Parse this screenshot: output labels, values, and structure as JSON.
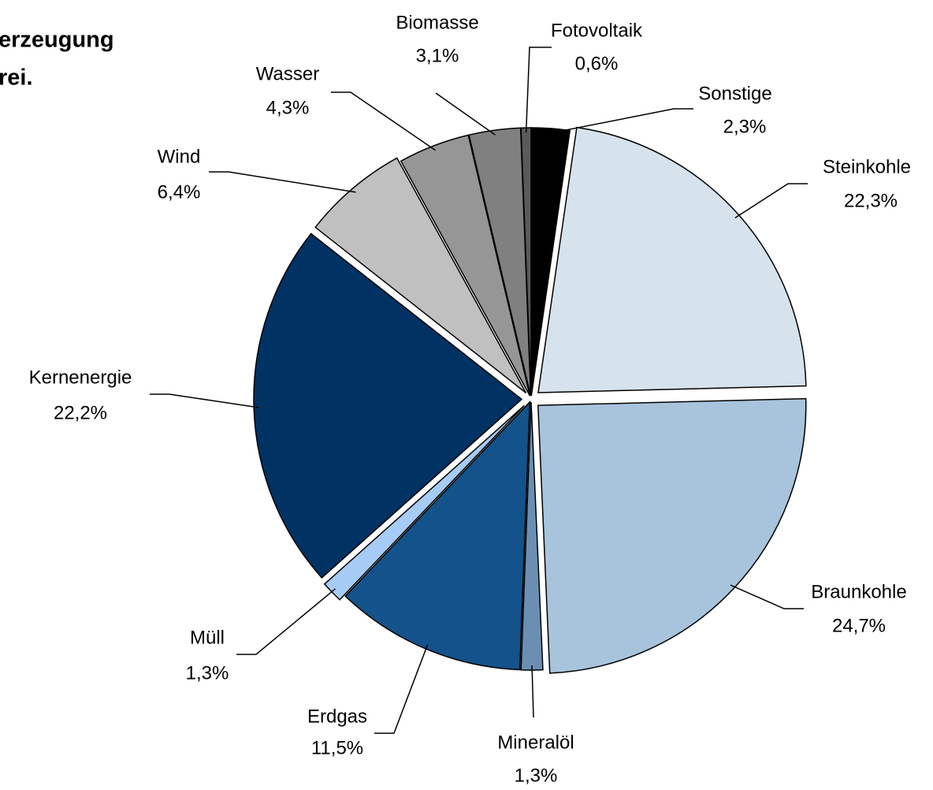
{
  "chart_data": {
    "type": "pie",
    "title_lines": [
      "erzeugung",
      "rei."
    ],
    "categories": [
      "Sonstige",
      "Steinkohle",
      "Braunkohle",
      "Mineralöl",
      "Erdgas",
      "Müll",
      "Kernenergie",
      "Wind",
      "Wasser",
      "Biomasse",
      "Fotovoltaik"
    ],
    "values": [
      2.3,
      22.3,
      24.7,
      1.3,
      11.5,
      1.3,
      22.2,
      6.4,
      4.3,
      3.1,
      0.6
    ],
    "value_labels": [
      "2,3%",
      "22,3%",
      "24,7%",
      "1,3%",
      "11,5%",
      "1,3%",
      "22,2%",
      "6,4%",
      "4,3%",
      "3,1%",
      "0,6%"
    ],
    "colors": [
      "#000000",
      "#d6e2ec",
      "#a8c4dc",
      "#6b8fb3",
      "#13528a",
      "#a6cbf5",
      "#003264",
      "#c0c0c0",
      "#969696",
      "#808080",
      "#5a5a5a"
    ]
  }
}
